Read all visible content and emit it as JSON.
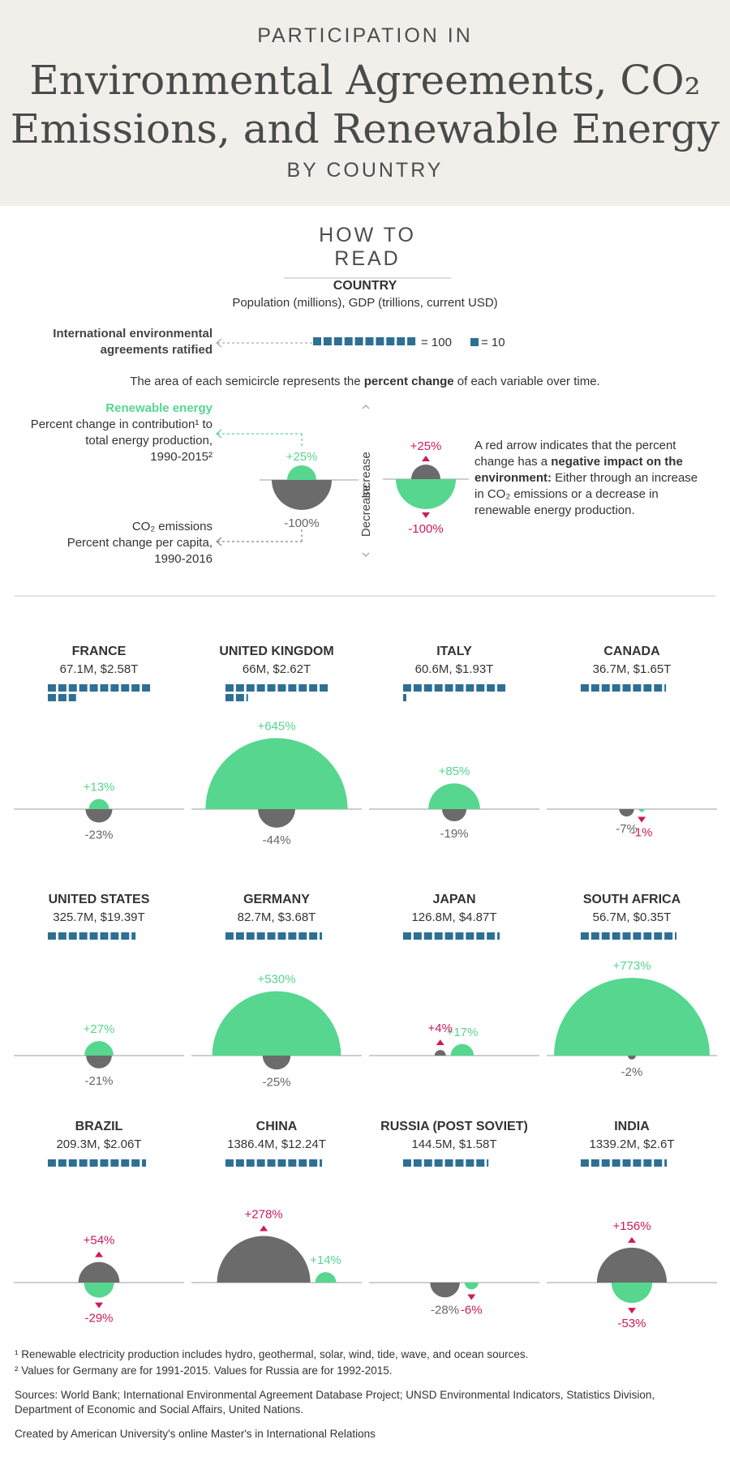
{
  "header": {
    "kicker": "PARTICIPATION IN",
    "title_line1": "Environmental Agreements, CO₂",
    "title_line2": "Emissions, and Renewable Energy",
    "sub": "BY COUNTRY"
  },
  "how_to_read": {
    "heading": "HOW TO READ",
    "country_label": "COUNTRY",
    "country_desc": "Population (millions), GDP (trillions,  current USD)",
    "agreements_label_1": "International environmental",
    "agreements_label_2": "agreements ratified",
    "legend_100": "= 100",
    "legend_10": "= 10",
    "area_note_pre": "The area of each semicircle represents the ",
    "area_note_bold": "percent change",
    "area_note_post": " of each variable over time.",
    "renew_title": "Renewable energy",
    "renew_desc_1": "Percent change in contribution¹ to",
    "renew_desc_2": "total energy production,",
    "renew_desc_3": "1990-2015²",
    "co2_title": "CO₂ emissions",
    "co2_desc_1": "Percent change per capita,",
    "co2_desc_2": "1990-2016",
    "example_up": "+25%",
    "example_down": "-100%",
    "increase": "Increase",
    "decrease": "Decrease",
    "red_up": "+25%",
    "red_down": "-100%",
    "red_note_1": "A red arrow indicates that the percent",
    "red_note_2a": "change has a ",
    "red_note_2b": "negative impact on the",
    "red_note_3a": "environment:",
    "red_note_3b": " Either through an increase",
    "red_note_4": "in CO₂ emissions or a decrease in",
    "red_note_5": "renewable energy production."
  },
  "colors": {
    "renewable": "#56d68f",
    "co2": "#6b6b6b",
    "negative": "#cc1a5c",
    "agreement": "#2e6f93",
    "axis": "#bdbdbd"
  },
  "chart_data": {
    "type": "semicircle",
    "countries": [
      {
        "name": "FRANCE",
        "info": "67.1M, $2.58T",
        "agreements": 129,
        "renewable": 13,
        "co2": -23,
        "renew_label": "+13%",
        "co2_label": "-23%"
      },
      {
        "name": "UNITED KINGDOM",
        "info": "66M, $2.62T",
        "agreements": 121,
        "renewable": 645,
        "co2": -44,
        "renew_label": "+645%",
        "co2_label": "-44%"
      },
      {
        "name": "ITALY",
        "info": "60.6M, $1.93T",
        "agreements": 104,
        "renewable": 85,
        "co2": -19,
        "renew_label": "+85%",
        "co2_label": "-19%"
      },
      {
        "name": "CANADA",
        "info": "36.7M, $1.65T",
        "agreements": 82,
        "renewable": -1,
        "co2": -7,
        "renew_label": "-1%",
        "co2_label": "-7%"
      },
      {
        "name": "UNITED STATES",
        "info": "325.7M, $19.39T",
        "agreements": 85,
        "renewable": 27,
        "co2": -21,
        "renew_label": "+27%",
        "co2_label": "-21%"
      },
      {
        "name": "GERMANY",
        "info": "82.7M, $3.68T",
        "agreements": 93,
        "renewable": 530,
        "co2": -25,
        "renew_label": "+530%",
        "co2_label": "-25%"
      },
      {
        "name": "JAPAN",
        "info": "126.8M, $4.87T",
        "agreements": 93,
        "renewable": 17,
        "co2": 4,
        "renew_label": "+17%",
        "co2_label": "+4%"
      },
      {
        "name": "SOUTH AFRICA",
        "info": "56.7M, $0.35T",
        "agreements": 92,
        "renewable": 773,
        "co2": -2,
        "renew_label": "+773%",
        "co2_label": "-2%"
      },
      {
        "name": "BRAZIL",
        "info": "209.3M, $2.06T",
        "agreements": 95,
        "renewable": -29,
        "co2": 54,
        "renew_label": "-29%",
        "co2_label": "+54%"
      },
      {
        "name": "CHINA",
        "info": "1386.4M, $12.24T",
        "agreements": 93,
        "renewable": 14,
        "co2": 278,
        "renew_label": "+14%",
        "co2_label": "+278%"
      },
      {
        "name": "RUSSIA (POST SOVIET)",
        "info": "144.5M, $1.58T",
        "agreements": 81,
        "renewable": -6,
        "co2": -28,
        "renew_label": "-6%",
        "co2_label": "-28%"
      },
      {
        "name": "INDIA",
        "info": "1339.2M, $2.6T",
        "agreements": 83,
        "renewable": -53,
        "co2": 156,
        "renew_label": "-53%",
        "co2_label": "+156%"
      }
    ]
  },
  "footer": {
    "note1": "¹ Renewable electricity production includes hydro, geothermal, solar, wind, tide, wave, and ocean sources.",
    "note2": "² Values for Germany are for 1991-2015. Values for Russia are for 1992-2015.",
    "sources_1": "Sources: World Bank; International Environmental Agreement Database Project; UNSD Environmental Indicators, Statistics Division,",
    "sources_2": "Department of Economic and Social Affairs, United Nations.",
    "credit": "Created by American University's online Master's in International Relations"
  }
}
